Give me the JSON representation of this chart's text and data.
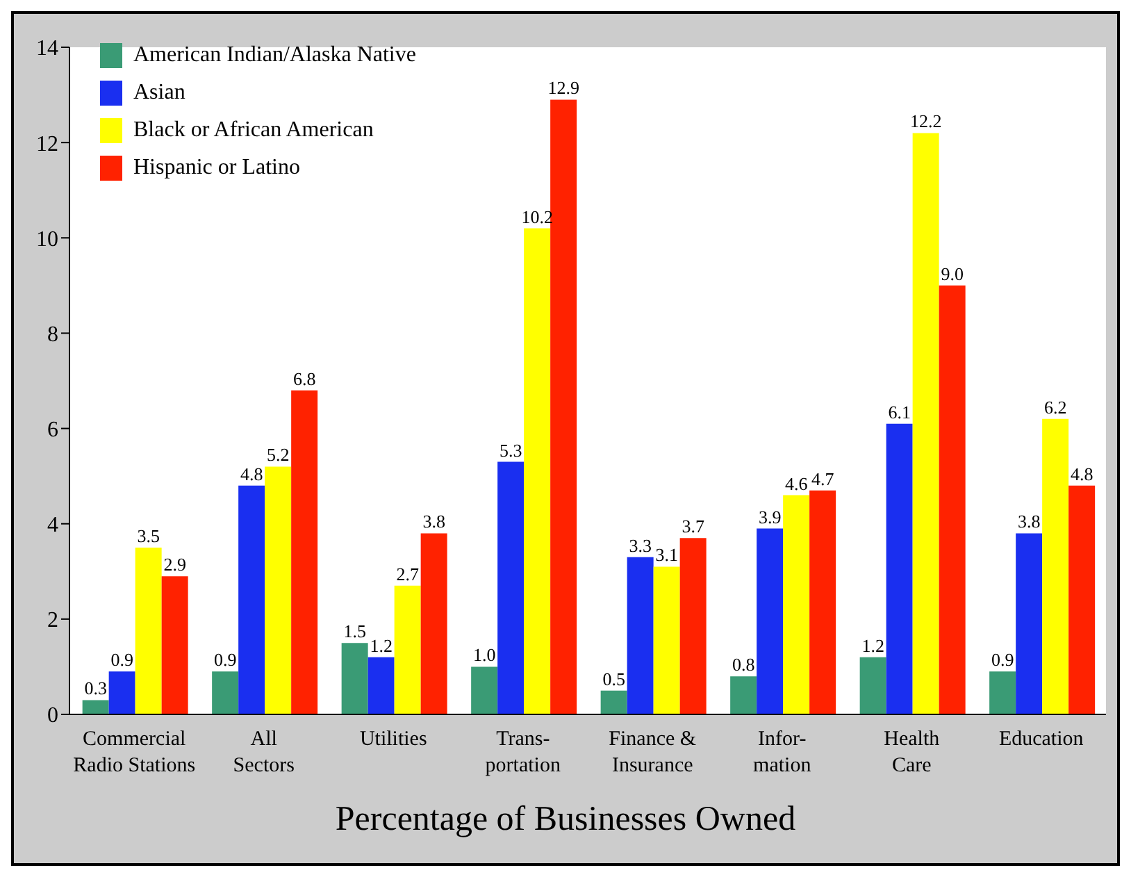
{
  "chart_data": {
    "type": "bar",
    "xlabel": "Percentage of Businesses Owned",
    "categories": [
      "Commercial\nRadio Stations",
      "All\nSectors",
      "Utilities",
      "Trans-\nportation",
      "Finance &\nInsurance",
      "Infor-\nmation",
      "Health\nCare",
      "Education"
    ],
    "series": [
      {
        "name": "American Indian/Alaska Native",
        "color": "#3a9b75",
        "values": [
          0.3,
          0.9,
          1.5,
          1.0,
          0.5,
          0.8,
          1.2,
          0.9
        ],
        "value_labels": [
          "0.3",
          "0.9",
          "1.5",
          "1.0",
          "0.5",
          "0.8",
          "1.2",
          "0.9"
        ]
      },
      {
        "name": "Asian",
        "color": "#1a2ff0",
        "values": [
          0.9,
          4.8,
          1.2,
          5.3,
          3.3,
          3.9,
          6.1,
          3.8
        ],
        "value_labels": [
          "0.9",
          "4.8",
          "1.2",
          "5.3",
          "3.3",
          "3.9",
          "6.1",
          "3.8"
        ]
      },
      {
        "name": "Black or African American",
        "color": "#ffff00",
        "values": [
          3.5,
          5.2,
          2.7,
          10.2,
          3.1,
          4.6,
          12.2,
          6.2
        ],
        "value_labels": [
          "3.5",
          "5.2",
          "2.7",
          "10.2",
          "3.1",
          "4.6",
          "12.2",
          "6.2"
        ]
      },
      {
        "name": "Hispanic or Latino",
        "color": "#ff2200",
        "values": [
          2.9,
          6.8,
          3.8,
          12.9,
          3.7,
          4.7,
          9.0,
          4.8
        ],
        "value_labels": [
          "2.9",
          "6.8",
          "3.8",
          "12.9",
          "3.7",
          "4.7",
          "9.0",
          "4.8"
        ]
      }
    ],
    "ylim": [
      0,
      14
    ],
    "yticks": [
      0,
      2,
      4,
      6,
      8,
      10,
      12,
      14
    ],
    "legend": "top left"
  }
}
